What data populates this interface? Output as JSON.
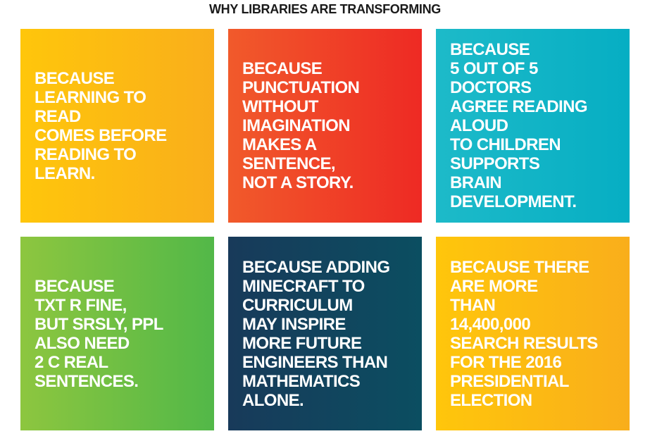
{
  "title": "WHY LIBRARIES ARE TRANSFORMING",
  "tiles": [
    {
      "text": "BECAUSE\nLEARNING TO\nREAD\nCOMES BEFORE\nREADING TO\nLEARN.",
      "color_start": "#FFC60B",
      "color_end": "#F9AE1B"
    },
    {
      "text": "BECAUSE\nPUNCTUATION\nWITHOUT\nIMAGINATION\nMAKES A\nSENTENCE,\nNOT A STORY.",
      "color_start": "#F15A2B",
      "color_end": "#EE2A24"
    },
    {
      "text": "BECAUSE\n5 OUT OF 5\nDOCTORS\nAGREE READING\nALOUD\nTO CHILDREN\nSUPPORTS\nBRAIN\nDEVELOPMENT.",
      "color_start": "#1DBAC9",
      "color_end": "#06AEC3"
    },
    {
      "text": "BECAUSE\nTXT R FINE,\nBUT SRSLY, PPL\nALSO NEED\n2 C REAL\nSENTENCES.",
      "color_start": "#8DC63F",
      "color_end": "#52B848"
    },
    {
      "text": "BECAUSE ADDING\nMINECRAFT TO\nCURRICULUM\nMAY INSPIRE\nMORE FUTURE\nENGINEERS THAN\nMATHEMATICS\nALONE.",
      "color_start": "#183A5A",
      "color_end": "#0B4E61"
    },
    {
      "text": "BECAUSE THERE\nARE MORE\nTHAN\n14,400,000\nSEARCH RESULTS\nFOR THE 2016\nPRESIDENTIAL\nELECTION",
      "color_start": "#FFC60B",
      "color_end": "#F9AE1B"
    }
  ]
}
